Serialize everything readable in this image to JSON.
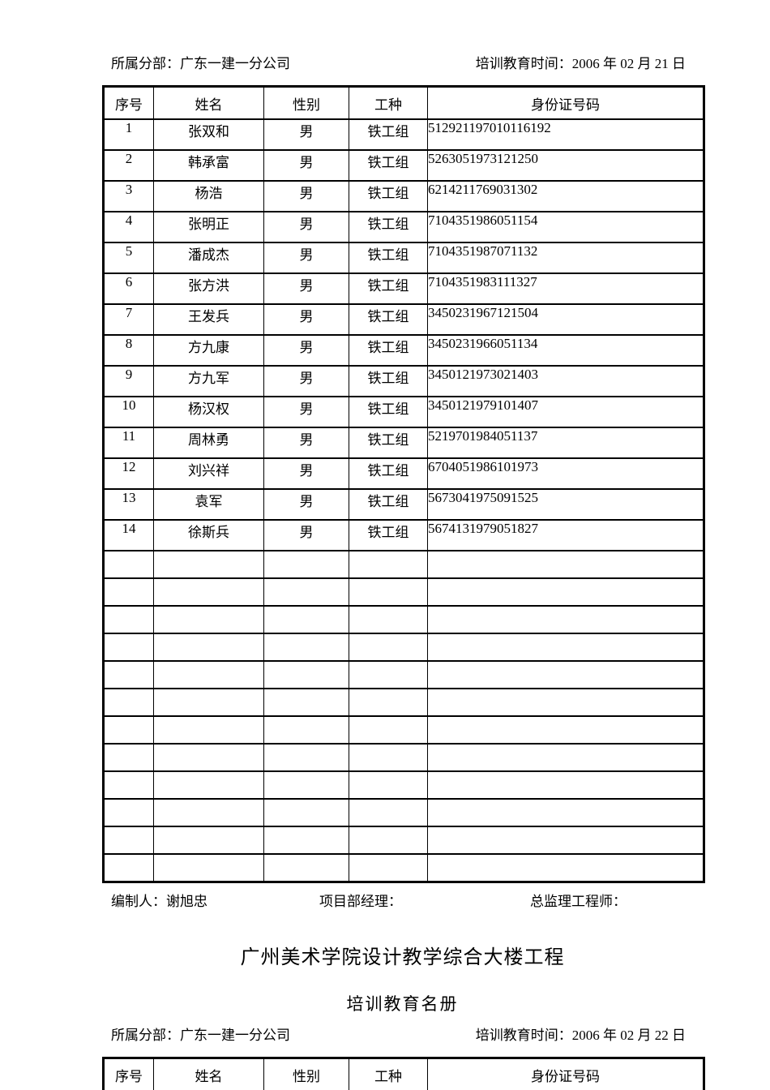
{
  "section1": {
    "meta": {
      "branch_label": "所属分部：",
      "branch_value": "广东一建一分公司",
      "time_label": "培训教育时间：",
      "time_value": "2006 年 02 月 21 日"
    },
    "table": {
      "headers": [
        "序号",
        "姓名",
        "性别",
        "工种",
        "身份证号码"
      ],
      "rows": [
        {
          "seq": "1",
          "name": "张双和",
          "gender": "男",
          "trade": "铁工组",
          "id": "512921197010116192"
        },
        {
          "seq": "2",
          "name": "韩承富",
          "gender": "男",
          "trade": "铁工组",
          "id": "5263051973121250"
        },
        {
          "seq": "3",
          "name": "杨浩",
          "gender": "男",
          "trade": "铁工组",
          "id": "6214211769031302"
        },
        {
          "seq": "4",
          "name": "张明正",
          "gender": "男",
          "trade": "铁工组",
          "id": "7104351986051154"
        },
        {
          "seq": "5",
          "name": "潘成杰",
          "gender": "男",
          "trade": "铁工组",
          "id": "7104351987071132"
        },
        {
          "seq": "6",
          "name": "张方洪",
          "gender": "男",
          "trade": "铁工组",
          "id": "7104351983111327"
        },
        {
          "seq": "7",
          "name": "王发兵",
          "gender": "男",
          "trade": "铁工组",
          "id": "3450231967121504"
        },
        {
          "seq": "8",
          "name": "方九康",
          "gender": "男",
          "trade": "铁工组",
          "id": "3450231966051134"
        },
        {
          "seq": "9",
          "name": "方九军",
          "gender": "男",
          "trade": "铁工组",
          "id": "3450121973021403"
        },
        {
          "seq": "10",
          "name": "杨汉权",
          "gender": "男",
          "trade": "铁工组",
          "id": "3450121979101407"
        },
        {
          "seq": "11",
          "name": "周林勇",
          "gender": "男",
          "trade": "铁工组",
          "id": "5219701984051137"
        },
        {
          "seq": "12",
          "name": "刘兴祥",
          "gender": "男",
          "trade": "铁工组",
          "id": "6704051986101973"
        },
        {
          "seq": "13",
          "name": "袁军",
          "gender": "男",
          "trade": "铁工组",
          "id": "5673041975091525"
        },
        {
          "seq": "14",
          "name": "徐斯兵",
          "gender": "男",
          "trade": "铁工组",
          "id": "5674131979051827"
        }
      ],
      "empty_row_count": 12
    },
    "footer": {
      "preparer_label": "编制人：",
      "preparer_value": "谢旭忠",
      "pm_label": "项目部经理：",
      "supervisor_label": "总监理工程师："
    }
  },
  "section2": {
    "title": "广州美术学院设计教学综合大楼工程",
    "subtitle": "培训教育名册",
    "meta": {
      "branch_label": "所属分部：",
      "branch_value": "广东一建一分公司",
      "time_label": "培训教育时间：",
      "time_value": "2006 年 02 月 22 日"
    },
    "table": {
      "headers": [
        "序号",
        "姓名",
        "性别",
        "工种",
        "身份证号码"
      ]
    }
  }
}
